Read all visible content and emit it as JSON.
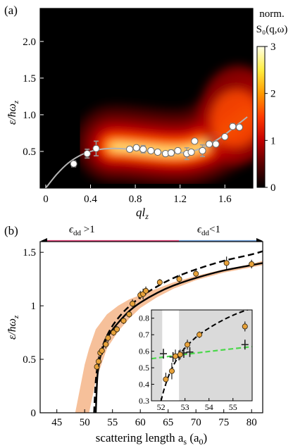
{
  "chart_data": [
    {
      "type": "heatmap",
      "panel_label": "(a)",
      "xlabel": "ql",
      "xlabel_sub": "z",
      "ylabel": "ε/ħω",
      "ylabel_sub": "z",
      "xlim": [
        -0.05,
        1.85
      ],
      "ylim": [
        0,
        2.45
      ],
      "xticks": [
        0,
        0.4,
        0.8,
        1.2,
        1.6
      ],
      "xtick_labels": [
        "0",
        "0.4",
        "0.8",
        "1.2",
        "1.6"
      ],
      "yticks": [
        0.5,
        1.0,
        1.5,
        2.0
      ],
      "ytick_labels": [
        "0.5",
        "1.0",
        "1.5",
        "2.0"
      ],
      "colorbar": {
        "title_line1": "norm.",
        "title_line2": "S₀(q,ω)",
        "range": [
          0,
          3
        ],
        "ticks": [
          0,
          1,
          2,
          3
        ],
        "tick_labels": [
          "0",
          "1",
          "2",
          "3"
        ],
        "colors": [
          "#000000",
          "#5a0000",
          "#c40000",
          "#ff3a00",
          "#ff9a00",
          "#ffee40",
          "#ffffe8"
        ]
      },
      "grid": false,
      "points": {
        "x": [
          0.25,
          0.37,
          0.45,
          0.75,
          0.81,
          0.87,
          0.94,
          1.0,
          1.07,
          1.12,
          1.18,
          1.26,
          1.3,
          1.33,
          1.4,
          1.46,
          1.52,
          1.6,
          1.67,
          1.73
        ],
        "y": [
          0.33,
          0.47,
          0.54,
          0.53,
          0.55,
          0.53,
          0.51,
          0.49,
          0.47,
          0.48,
          0.51,
          0.47,
          0.49,
          0.64,
          0.51,
          0.6,
          0.6,
          0.7,
          0.84,
          0.83
        ],
        "err": [
          0.04,
          0.06,
          0.1,
          0.03,
          0.03,
          0.05,
          0.03,
          0.03,
          0.03,
          0.04,
          0.03,
          0.08,
          0.03,
          0.03,
          0.08,
          0.03,
          0.03,
          0.03,
          0.04,
          0.03
        ]
      },
      "fit_curve": {
        "x": [
          0.0,
          0.1,
          0.2,
          0.3,
          0.4,
          0.5,
          0.6,
          0.7,
          0.8,
          0.9,
          1.0,
          1.1,
          1.2,
          1.3,
          1.4,
          1.5,
          1.6,
          1.7,
          1.8
        ],
        "y": [
          0.0,
          0.19,
          0.34,
          0.44,
          0.5,
          0.53,
          0.54,
          0.535,
          0.52,
          0.505,
          0.49,
          0.48,
          0.48,
          0.5,
          0.55,
          0.63,
          0.73,
          0.85,
          0.97
        ]
      }
    },
    {
      "type": "scatter",
      "panel_label": "(b)",
      "xlabel": "scattering length a",
      "xlabel_sub": "s",
      "xlabel_unit": "(a",
      "xlabel_unit_sub": "0",
      "ylabel": "ε/ħω",
      "ylabel_sub": "z",
      "xlim": [
        42,
        82
      ],
      "ylim": [
        0,
        1.6
      ],
      "xticks": [
        45,
        50,
        55,
        60,
        65,
        70,
        75,
        80
      ],
      "xtick_labels": [
        "45",
        "50",
        "55",
        "60",
        "65",
        "70",
        "75",
        "80"
      ],
      "yticks": [
        0,
        0.5,
        1,
        1.5
      ],
      "ytick_labels": [
        "0",
        "0.5",
        "1",
        "1.5"
      ],
      "grid": false,
      "top_arrow": {
        "left_label": "ϵ",
        "left_sub": "dd",
        "left_rel": " >1",
        "right_label": "ϵ",
        "right_sub": "dd",
        "right_rel": "<1",
        "left_color": "#e0457b",
        "right_color": "#6e9ed8",
        "boundary_x": 66.5
      },
      "points": {
        "x": [
          52.2,
          52.5,
          52.8,
          53.1,
          53.8,
          54.2,
          55.2,
          55.8,
          57.0,
          58.0,
          58.6,
          60.0,
          60.5,
          61.0,
          63.5,
          67.0,
          70.0,
          75.5,
          80.0
        ],
        "y": [
          0.43,
          0.48,
          0.56,
          0.58,
          0.64,
          0.7,
          0.75,
          0.78,
          0.86,
          0.92,
          1.02,
          1.1,
          1.11,
          1.14,
          1.22,
          1.25,
          1.3,
          1.4,
          1.39
        ],
        "err": [
          0.04,
          0.05,
          0.04,
          0.04,
          0.04,
          0.04,
          0.03,
          0.03,
          0.03,
          0.03,
          0.04,
          0.04,
          0.05,
          0.04,
          0.03,
          0.04,
          0.03,
          0.06,
          0.04
        ]
      },
      "solid_curve": {
        "x": [
          52.0,
          52.3,
          52.8,
          53.5,
          54.5,
          56,
          58,
          60,
          63,
          66,
          70,
          75,
          80,
          82
        ],
        "y": [
          0.0,
          0.35,
          0.52,
          0.64,
          0.74,
          0.84,
          0.95,
          1.03,
          1.12,
          1.19,
          1.26,
          1.33,
          1.38,
          1.4
        ]
      },
      "dashed_curve": {
        "x": [
          51.7,
          52.0,
          52.5,
          53.2,
          54.2,
          55.5,
          57.5,
          60,
          63,
          66,
          70,
          75,
          80,
          82
        ],
        "y": [
          0.0,
          0.3,
          0.5,
          0.62,
          0.74,
          0.85,
          0.97,
          1.08,
          1.18,
          1.26,
          1.34,
          1.42,
          1.48,
          1.51
        ]
      },
      "band": {
        "x": [
          48.3,
          50.0,
          50.8,
          52.0,
          54.0,
          56.0,
          58.0,
          60.0,
          63.0,
          66.0,
          70.0,
          75.0,
          80.0,
          82.0
        ],
        "low": [
          0.0,
          0.0,
          0.0,
          0.3,
          0.6,
          0.76,
          0.88,
          0.98,
          1.08,
          1.16,
          1.24,
          1.31,
          1.36,
          1.38
        ],
        "high": [
          0.0,
          0.45,
          0.6,
          0.78,
          0.92,
          1.0,
          1.06,
          1.1,
          1.16,
          1.22,
          1.28,
          1.34,
          1.39,
          1.42
        ]
      },
      "colors": {
        "points": "#e8a23a",
        "band": "#f6c09a",
        "green": "#4ad84a",
        "shade": "#dadada"
      },
      "inset": {
        "xlim": [
          51.6,
          55.8
        ],
        "ylim": [
          0.3,
          0.85
        ],
        "xticks": [
          52,
          53,
          54,
          55
        ],
        "xtick_labels": [
          "52",
          "53",
          "54",
          "55"
        ],
        "yticks": [
          0.3,
          0.4,
          0.5,
          0.6,
          0.7,
          0.8
        ],
        "ytick_labels": [
          "0.3",
          "0.4",
          "0.5",
          "0.6",
          "0.7",
          "0.8"
        ],
        "shaded": [
          [
            51.6,
            52.05
          ],
          [
            52.75,
            55.8
          ]
        ],
        "points": {
          "x": [
            52.2,
            52.45,
            52.6,
            52.8,
            53.1,
            53.6,
            55.5
          ],
          "y": [
            0.43,
            0.48,
            0.57,
            0.58,
            0.64,
            0.7,
            0.75
          ],
          "err": [
            0.04,
            0.05,
            0.04,
            0.03,
            0.03,
            0.02,
            0.03
          ]
        },
        "crosses": {
          "x": [
            52.1,
            52.5,
            52.75,
            52.95,
            53.2,
            55.5
          ],
          "y": [
            0.585,
            0.565,
            0.575,
            0.59,
            0.595,
            0.64
          ]
        },
        "dashed_black": {
          "x": [
            52.0,
            52.15,
            52.4,
            52.7,
            53.0,
            53.5,
            54.0,
            54.6,
            55.2,
            55.8
          ],
          "y": [
            0.3,
            0.38,
            0.48,
            0.56,
            0.62,
            0.69,
            0.74,
            0.79,
            0.83,
            0.86
          ]
        },
        "dashed_green": {
          "x": [
            51.6,
            52.5,
            53.5,
            54.5,
            55.8
          ],
          "y": [
            0.555,
            0.572,
            0.59,
            0.607,
            0.628
          ]
        }
      }
    }
  ]
}
